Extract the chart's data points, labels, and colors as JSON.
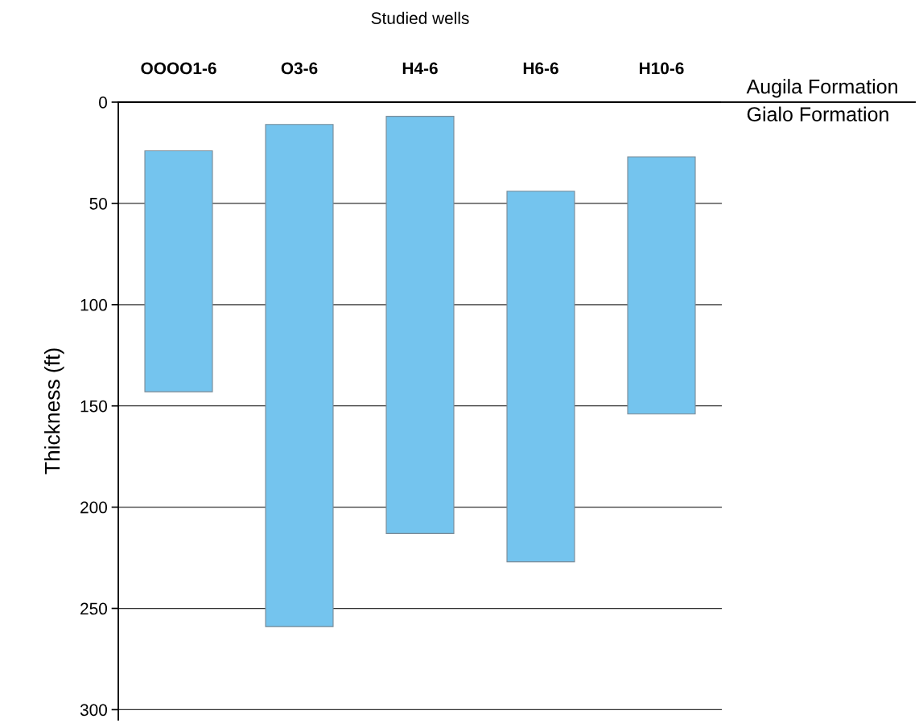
{
  "chart_data": {
    "type": "bar",
    "title": "Studied wells",
    "ylabel": "Thickness (ft)",
    "categories": [
      "OOOO1-6",
      "O3-6",
      "H4-6",
      "H6-6",
      "H10-6"
    ],
    "base": [
      24,
      11,
      7,
      44,
      27
    ],
    "values": [
      119,
      248,
      206,
      183,
      127
    ],
    "color": "#74c4ee",
    "ylim": [
      305,
      0
    ],
    "yticks": [
      0,
      50,
      100,
      150,
      200,
      250,
      300
    ],
    "grid": "y",
    "annotations": [
      "Augila Formation",
      "Gialo Formation"
    ]
  }
}
